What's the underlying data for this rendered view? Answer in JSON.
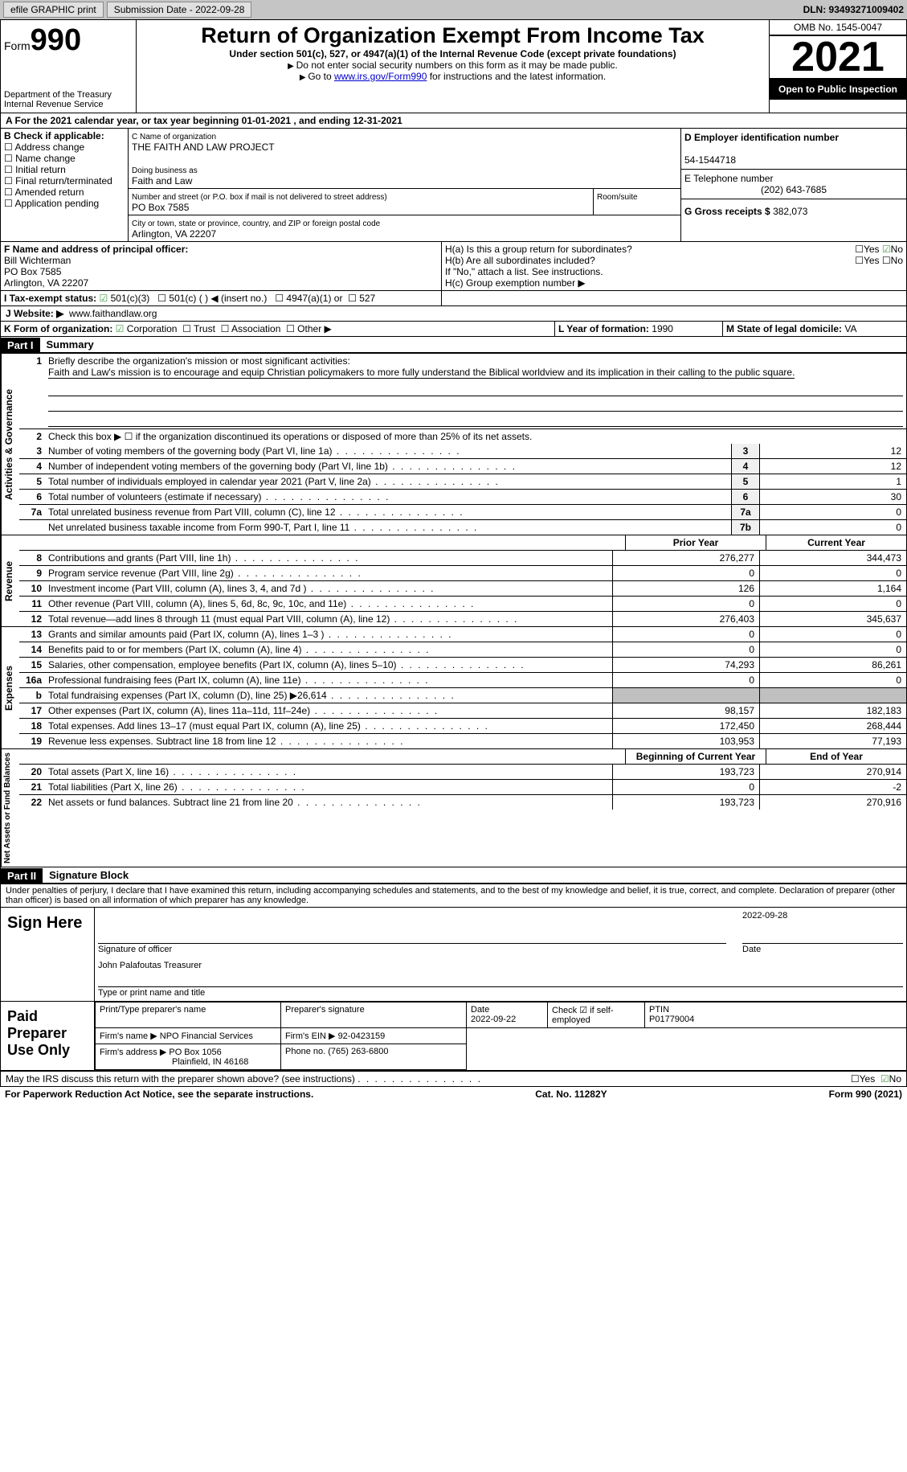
{
  "toolbar": {
    "efile": "efile GRAPHIC print",
    "submission": "Submission Date - 2022-09-28",
    "dln": "DLN: 93493271009402"
  },
  "header": {
    "form_word": "Form",
    "form_num": "990",
    "dept": "Department of the Treasury Internal Revenue Service",
    "title": "Return of Organization Exempt From Income Tax",
    "subtitle": "Under section 501(c), 527, or 4947(a)(1) of the Internal Revenue Code (except private foundations)",
    "note1": "Do not enter social security numbers on this form as it may be made public.",
    "note2_pre": "Go to ",
    "note2_link": "www.irs.gov/Form990",
    "note2_post": " for instructions and the latest information.",
    "omb": "OMB No. 1545-0047",
    "year": "2021",
    "inspection": "Open to Public Inspection"
  },
  "period": {
    "text": "A For the 2021 calendar year, or tax year beginning 01-01-2021   , and ending 12-31-2021"
  },
  "boxB": {
    "label": "B Check if applicable:",
    "opts": [
      "Address change",
      "Name change",
      "Initial return",
      "Final return/terminated",
      "Amended return",
      "Application pending"
    ]
  },
  "boxC": {
    "name_label": "C Name of organization",
    "name": "THE FAITH AND LAW PROJECT",
    "dba_label": "Doing business as",
    "dba": "Faith and Law",
    "street_label": "Number and street (or P.O. box if mail is not delivered to street address)",
    "room_label": "Room/suite",
    "street": "PO Box 7585",
    "city_label": "City or town, state or province, country, and ZIP or foreign postal code",
    "city": "Arlington, VA  22207"
  },
  "boxD": {
    "label": "D Employer identification number",
    "value": "54-1544718"
  },
  "boxE": {
    "label": "E Telephone number",
    "value": "(202) 643-7685"
  },
  "boxG": {
    "label": "G Gross receipts $",
    "value": "382,073"
  },
  "boxF": {
    "label": "F  Name and address of principal officer:",
    "name": "Bill Wichterman",
    "addr1": "PO Box 7585",
    "addr2": "Arlington, VA  22207"
  },
  "boxH": {
    "a": "H(a)  Is this a group return for subordinates?",
    "b": "H(b)  Are all subordinates included?",
    "bnote": "If \"No,\" attach a list. See instructions.",
    "c": "H(c)  Group exemption number ▶",
    "yes": "Yes",
    "no": "No"
  },
  "boxI": {
    "label": "I    Tax-exempt status:",
    "o1": "501(c)(3)",
    "o2": "501(c) (  ) ◀ (insert no.)",
    "o3": "4947(a)(1) or",
    "o4": "527"
  },
  "boxJ": {
    "label": "J    Website: ▶",
    "value": "www.faithandlaw.org"
  },
  "boxK": {
    "label": "K Form of organization:",
    "o1": "Corporation",
    "o2": "Trust",
    "o3": "Association",
    "o4": "Other ▶"
  },
  "boxL": {
    "label": "L Year of formation:",
    "value": "1990"
  },
  "boxM": {
    "label": "M State of legal domicile:",
    "value": "VA"
  },
  "part1": {
    "label": "Part I",
    "title": "Summary",
    "line1_label": "Briefly describe the organization's mission or most significant activities:",
    "line1_text": "Faith and Law's mission is to encourage and equip Christian policymakers to more fully understand the Biblical worldview and its implication in their calling to the public square.",
    "line2": "Check this box ▶ ☐ if the organization discontinued its operations or disposed of more than 25% of its net assets.",
    "lines_ag": [
      {
        "n": "3",
        "label": "Number of voting members of the governing body (Part VI, line 1a)",
        "box": "3",
        "val": "12"
      },
      {
        "n": "4",
        "label": "Number of independent voting members of the governing body (Part VI, line 1b)",
        "box": "4",
        "val": "12"
      },
      {
        "n": "5",
        "label": "Total number of individuals employed in calendar year 2021 (Part V, line 2a)",
        "box": "5",
        "val": "1"
      },
      {
        "n": "6",
        "label": "Total number of volunteers (estimate if necessary)",
        "box": "6",
        "val": "30"
      },
      {
        "n": "7a",
        "label": "Total unrelated business revenue from Part VIII, column (C), line 12",
        "box": "7a",
        "val": "0"
      },
      {
        "n": "",
        "label": "Net unrelated business taxable income from Form 990-T, Part I, line 11",
        "box": "7b",
        "val": "0"
      }
    ],
    "col_prior": "Prior Year",
    "col_current": "Current Year",
    "revenue": [
      {
        "n": "8",
        "label": "Contributions and grants (Part VIII, line 1h)",
        "p": "276,277",
        "c": "344,473"
      },
      {
        "n": "9",
        "label": "Program service revenue (Part VIII, line 2g)",
        "p": "0",
        "c": "0"
      },
      {
        "n": "10",
        "label": "Investment income (Part VIII, column (A), lines 3, 4, and 7d )",
        "p": "126",
        "c": "1,164"
      },
      {
        "n": "11",
        "label": "Other revenue (Part VIII, column (A), lines 5, 6d, 8c, 9c, 10c, and 11e)",
        "p": "0",
        "c": "0"
      },
      {
        "n": "12",
        "label": "Total revenue—add lines 8 through 11 (must equal Part VIII, column (A), line 12)",
        "p": "276,403",
        "c": "345,637"
      }
    ],
    "expenses": [
      {
        "n": "13",
        "label": "Grants and similar amounts paid (Part IX, column (A), lines 1–3 )",
        "p": "0",
        "c": "0"
      },
      {
        "n": "14",
        "label": "Benefits paid to or for members (Part IX, column (A), line 4)",
        "p": "0",
        "c": "0"
      },
      {
        "n": "15",
        "label": "Salaries, other compensation, employee benefits (Part IX, column (A), lines 5–10)",
        "p": "74,293",
        "c": "86,261"
      },
      {
        "n": "16a",
        "label": "Professional fundraising fees (Part IX, column (A), line 11e)",
        "p": "0",
        "c": "0"
      },
      {
        "n": "b",
        "label": "Total fundraising expenses (Part IX, column (D), line 25) ▶26,614",
        "p": "",
        "c": "",
        "grey": true
      },
      {
        "n": "17",
        "label": "Other expenses (Part IX, column (A), lines 11a–11d, 11f–24e)",
        "p": "98,157",
        "c": "182,183"
      },
      {
        "n": "18",
        "label": "Total expenses. Add lines 13–17 (must equal Part IX, column (A), line 25)",
        "p": "172,450",
        "c": "268,444"
      },
      {
        "n": "19",
        "label": "Revenue less expenses. Subtract line 18 from line 12",
        "p": "103,953",
        "c": "77,193"
      }
    ],
    "col_begin": "Beginning of Current Year",
    "col_end": "End of Year",
    "netassets": [
      {
        "n": "20",
        "label": "Total assets (Part X, line 16)",
        "p": "193,723",
        "c": "270,914"
      },
      {
        "n": "21",
        "label": "Total liabilities (Part X, line 26)",
        "p": "0",
        "c": "-2"
      },
      {
        "n": "22",
        "label": "Net assets or fund balances. Subtract line 21 from line 20",
        "p": "193,723",
        "c": "270,916"
      }
    ],
    "tab_ag": "Activities & Governance",
    "tab_rev": "Revenue",
    "tab_exp": "Expenses",
    "tab_net": "Net Assets or Fund Balances"
  },
  "part2": {
    "label": "Part II",
    "title": "Signature Block",
    "declaration": "Under penalties of perjury, I declare that I have examined this return, including accompanying schedules and statements, and to the best of my knowledge and belief, it is true, correct, and complete. Declaration of preparer (other than officer) is based on all information of which preparer has any knowledge.",
    "sign_here": "Sign Here",
    "sig_officer": "Signature of officer",
    "sig_date": "2022-09-28",
    "date_label": "Date",
    "officer_name": "John Palafoutas  Treasurer",
    "type_name": "Type or print name and title",
    "paid": "Paid Preparer Use Only",
    "prep_name_label": "Print/Type preparer's name",
    "prep_sig_label": "Preparer's signature",
    "prep_date_label": "Date",
    "prep_date": "2022-09-22",
    "check_if": "Check ☑ if self-employed",
    "ptin_label": "PTIN",
    "ptin": "P01779004",
    "firm_name_label": "Firm's name    ▶",
    "firm_name": "NPO Financial Services",
    "firm_ein_label": "Firm's EIN ▶",
    "firm_ein": "92-0423159",
    "firm_addr_label": "Firm's address ▶",
    "firm_addr": "PO Box 1056",
    "firm_city": "Plainfield, IN  46168",
    "phone_label": "Phone no.",
    "phone": "(765) 263-6800",
    "may_irs": "May the IRS discuss this return with the preparer shown above? (see instructions)"
  },
  "footer": {
    "left": "For Paperwork Reduction Act Notice, see the separate instructions.",
    "mid": "Cat. No. 11282Y",
    "right": "Form 990 (2021)"
  }
}
